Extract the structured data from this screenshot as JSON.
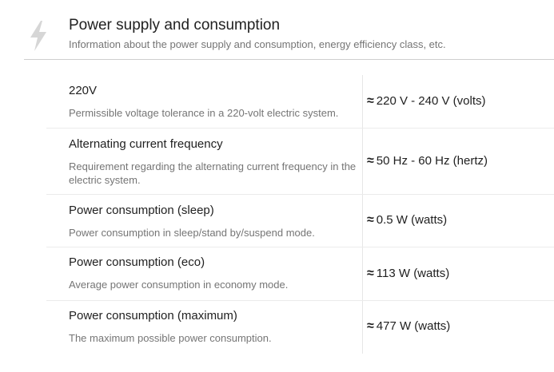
{
  "header": {
    "icon": "lightning-bolt-icon",
    "title": "Power supply and consumption",
    "subtitle": "Information about the power supply and consumption, energy efficiency class, etc."
  },
  "rows": [
    {
      "name": "220V",
      "description": "Permissible voltage tolerance in a 220-volt electric system.",
      "approx_symbol": "≈",
      "value": "220 V - 240 V (volts)"
    },
    {
      "name": "Alternating current frequency",
      "description": "Requirement regarding the alternating current frequency in the electric system.",
      "approx_symbol": "≈",
      "value": "50 Hz - 60 Hz (hertz)"
    },
    {
      "name": "Power consumption (sleep)",
      "description": "Power consumption in sleep/stand by/suspend mode.",
      "approx_symbol": "≈",
      "value": "0.5 W (watts)"
    },
    {
      "name": "Power consumption (eco)",
      "description": "Average power consumption in economy mode.",
      "approx_symbol": "≈",
      "value": "113 W (watts)"
    },
    {
      "name": "Power consumption (maximum)",
      "description": "The maximum possible power consumption.",
      "approx_symbol": "≈",
      "value": "477 W (watts)"
    }
  ]
}
